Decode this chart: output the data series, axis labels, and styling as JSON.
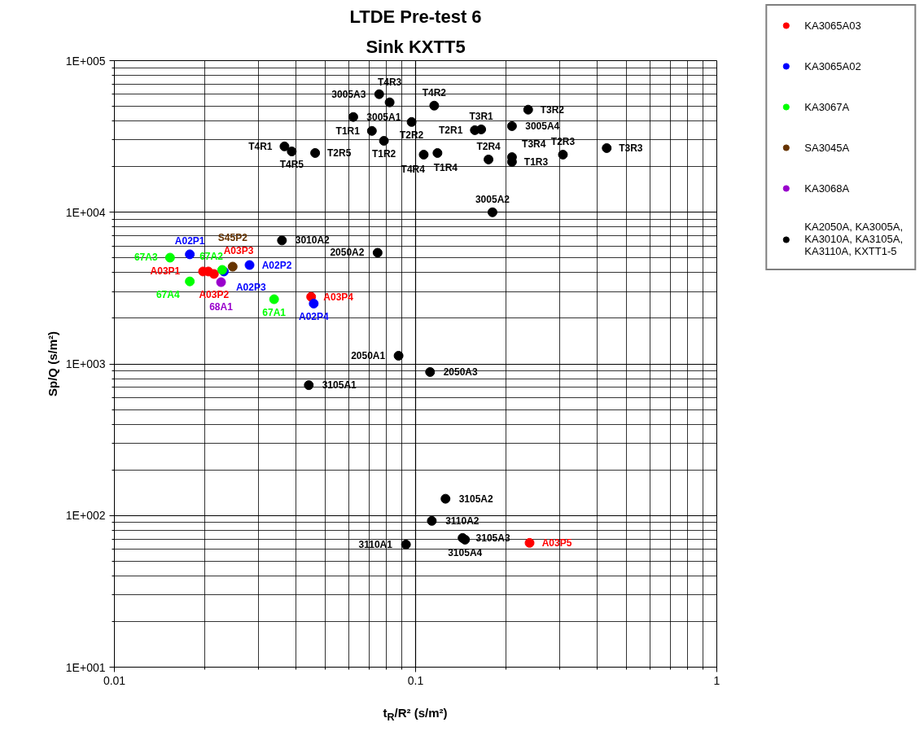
{
  "chart_data": {
    "type": "scatter",
    "title": "LTDE Pre-test 6",
    "subtitle": "Sink KXTT5",
    "xlabel": "t$_{R}$/R² (s/m²)",
    "ylabel": "Sp/Q (s/m²)",
    "log": "xy",
    "xlim": [
      0.01,
      1
    ],
    "ylim": [
      10,
      100000
    ],
    "xticks": [
      0.01,
      0.1,
      1
    ],
    "yticks": [
      {
        "value": 10,
        "label": "1E+001"
      },
      {
        "value": 100,
        "label": "1E+002"
      },
      {
        "value": 1000,
        "label": "1E+003"
      },
      {
        "value": 10000,
        "label": "1E+004"
      },
      {
        "value": 100000,
        "label": "1E+005"
      }
    ],
    "grid": true,
    "legend": "right",
    "marker": "circle",
    "series": [
      {
        "name": "KA3065A03",
        "color": "#ff0000",
        "x": [
          0.0197,
          0.0205,
          0.0214,
          0.045,
          0.239
        ],
        "values": [
          4070,
          4070,
          3920,
          2770,
          66
        ]
      },
      {
        "name": "KA3065A02",
        "color": "#0000ff",
        "x": [
          0.0178,
          0.0281,
          0.0231,
          0.0459
        ],
        "values": [
          5280,
          4490,
          4070,
          2500
        ]
      },
      {
        "name": "KA3067A",
        "color": "#00ff00",
        "x": [
          0.0339,
          0.0228,
          0.0153,
          0.0178
        ],
        "values": [
          2670,
          4170,
          5020,
          3500
        ]
      },
      {
        "name": "SA3045A",
        "color": "#663300",
        "x": [
          0.0247
        ],
        "values": [
          4380
        ]
      },
      {
        "name": "KA3068A",
        "color": "#9900cc",
        "x": [
          0.0226
        ],
        "values": [
          3460
        ]
      },
      {
        "name": "KA2050A, KA3005A, KA3010A, KA3105A, KA3110A, KXTT1-5",
        "color": "#000000",
        "x": [
          0.0878,
          0.0748,
          0.1117,
          0.0621,
          0.18,
          0.0757,
          0.2089,
          0.036,
          0.0442,
          0.1257,
          0.1432,
          0.1459,
          0.0929,
          0.1132,
          0.0716,
          0.0785,
          0.2089,
          0.1064,
          0.1573,
          0.097,
          0.3084,
          0.1746,
          0.1651,
          0.2364,
          0.431,
          0.2089,
          0.0367,
          0.082,
          0.1153,
          0.1182,
          0.0388,
          0.0464
        ],
        "values": [
          1132,
          5410,
          884,
          42500,
          10000,
          60100,
          37000,
          6520,
          724,
          129,
          71.1,
          69.3,
          64.4,
          92.2,
          34400,
          29600,
          21500,
          24000,
          34800,
          39400,
          24000,
          22300,
          35200,
          47500,
          26500,
          23100,
          27200,
          53100,
          50500,
          24600,
          25200,
          24600
        ]
      }
    ],
    "annotations": [
      {
        "text": "A03P1",
        "x": 0.0197,
        "y": 4070
      },
      {
        "text": "A03P3",
        "x": 0.0205,
        "y": 4070
      },
      {
        "text": "A03P2",
        "x": 0.0214,
        "y": 3920
      },
      {
        "text": "A03P4",
        "x": 0.045,
        "y": 2770
      },
      {
        "text": "A03P5",
        "x": 0.239,
        "y": 66
      },
      {
        "text": "A02P1",
        "x": 0.0178,
        "y": 5280
      },
      {
        "text": "A02P2",
        "x": 0.0281,
        "y": 4490
      },
      {
        "text": "A02P3",
        "x": 0.0231,
        "y": 4070
      },
      {
        "text": "A02P4",
        "x": 0.0459,
        "y": 2500
      },
      {
        "text": "67A1",
        "x": 0.0339,
        "y": 2670
      },
      {
        "text": "67A2",
        "x": 0.0228,
        "y": 4170
      },
      {
        "text": "67A3",
        "x": 0.0153,
        "y": 5020
      },
      {
        "text": "67A4",
        "x": 0.0178,
        "y": 3500
      },
      {
        "text": "S45P2",
        "x": 0.0247,
        "y": 4380
      },
      {
        "text": "68A1",
        "x": 0.0226,
        "y": 3460
      },
      {
        "text": "2050A1",
        "x": 0.0878,
        "y": 1132
      },
      {
        "text": "2050A2",
        "x": 0.0748,
        "y": 5410
      },
      {
        "text": "2050A3",
        "x": 0.1117,
        "y": 884
      },
      {
        "text": "3005A1",
        "x": 0.0621,
        "y": 42500
      },
      {
        "text": "3005A2",
        "x": 0.18,
        "y": 10000
      },
      {
        "text": "3005A3",
        "x": 0.0757,
        "y": 60100
      },
      {
        "text": "3005A4",
        "x": 0.2089,
        "y": 37000
      },
      {
        "text": "3010A2",
        "x": 0.036,
        "y": 6520
      },
      {
        "text": "3105A1",
        "x": 0.0442,
        "y": 724
      },
      {
        "text": "3105A2",
        "x": 0.1257,
        "y": 129
      },
      {
        "text": "3105A3",
        "x": 0.1432,
        "y": 71.1
      },
      {
        "text": "3105A4",
        "x": 0.1459,
        "y": 69.3
      },
      {
        "text": "3110A1",
        "x": 0.0929,
        "y": 64.4
      },
      {
        "text": "3110A2",
        "x": 0.1132,
        "y": 92.2
      },
      {
        "text": "T1R1",
        "x": 0.0716,
        "y": 34400
      },
      {
        "text": "T1R2",
        "x": 0.0785,
        "y": 29600
      },
      {
        "text": "T1R3",
        "x": 0.2089,
        "y": 21500
      },
      {
        "text": "T1R4",
        "x": 0.1064,
        "y": 24000
      },
      {
        "text": "T2R1",
        "x": 0.1573,
        "y": 34800
      },
      {
        "text": "T2R2",
        "x": 0.097,
        "y": 39400
      },
      {
        "text": "T2R3",
        "x": 0.3084,
        "y": 24000
      },
      {
        "text": "T2R4",
        "x": 0.1746,
        "y": 22300
      },
      {
        "text": "T2R5",
        "x": 0.0464,
        "y": 24600
      },
      {
        "text": "T3R1",
        "x": 0.1651,
        "y": 35200
      },
      {
        "text": "T3R2",
        "x": 0.2364,
        "y": 47500
      },
      {
        "text": "T3R3",
        "x": 0.431,
        "y": 26500
      },
      {
        "text": "T3R4",
        "x": 0.2089,
        "y": 23100
      },
      {
        "text": "T4R1",
        "x": 0.0367,
        "y": 27200
      },
      {
        "text": "T4R2",
        "x": 0.1153,
        "y": 50500
      },
      {
        "text": "T4R3",
        "x": 0.082,
        "y": 53100
      },
      {
        "text": "T4R4",
        "x": 0.1182,
        "y": 24600
      },
      {
        "text": "T4R5",
        "x": 0.0388,
        "y": 25200
      }
    ]
  }
}
